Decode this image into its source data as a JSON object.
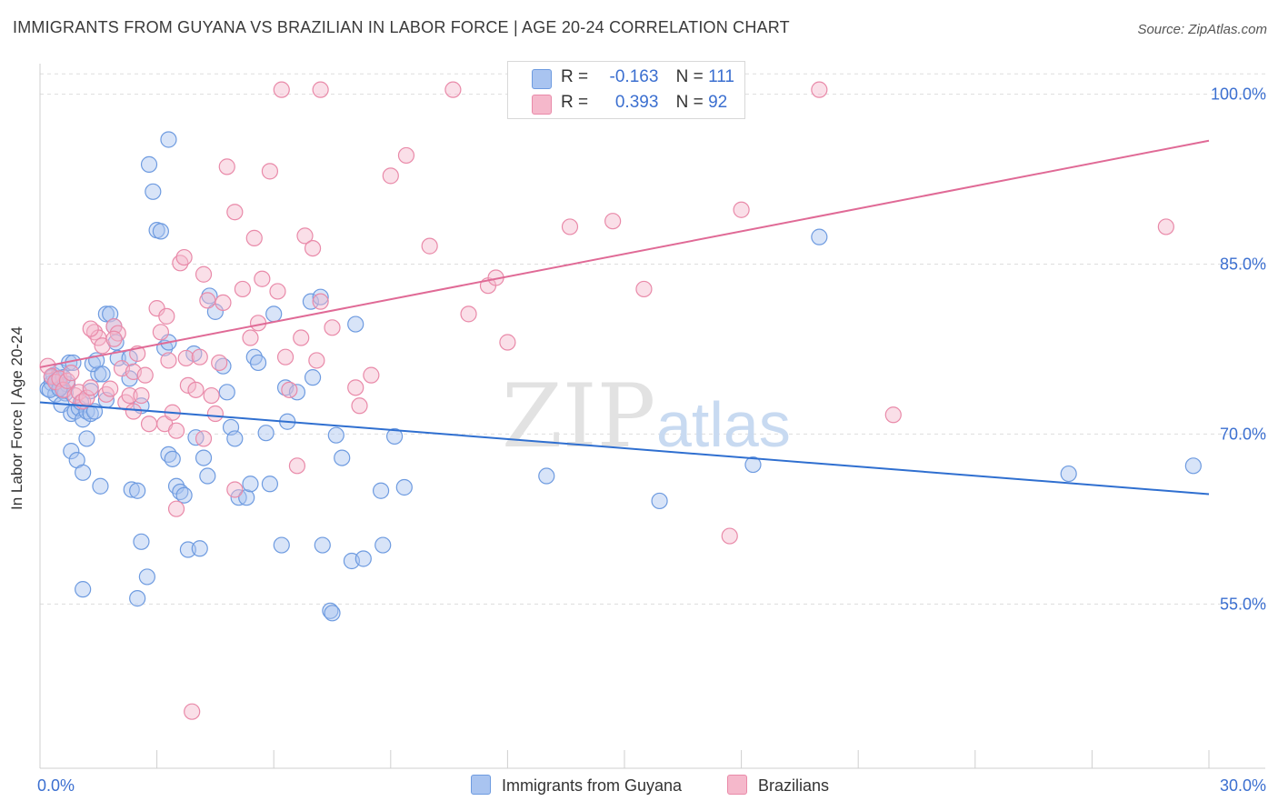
{
  "title": "IMMIGRANTS FROM GUYANA VS BRAZILIAN IN LABOR FORCE | AGE 20-24 CORRELATION CHART",
  "source": "Source: ZipAtlas.com",
  "watermark": {
    "zip": "ZIP",
    "atlas": "atlas"
  },
  "legend": {
    "r_label": "R =",
    "n_label": "N =",
    "series": [
      {
        "r": "-0.163",
        "n": "111"
      },
      {
        "r": "0.393",
        "n": "92"
      }
    ]
  },
  "colors": {
    "blue_fill": "#a9c4f0",
    "blue_stroke": "#6e9be0",
    "blue_line": "#2f6fd0",
    "pink_fill": "#f5b8cb",
    "pink_stroke": "#e98aa9",
    "pink_line": "#e06a96",
    "axis_text": "#3b6fd0",
    "grid": "#dddddd"
  },
  "chart_data": {
    "type": "scatter",
    "title": "IMMIGRANTS FROM GUYANA VS BRAZILIAN IN LABOR FORCE | AGE 20-24 CORRELATION CHART",
    "xlabel": "",
    "ylabel": "In Labor Force | Age 20-24",
    "xlim": [
      0,
      30
    ],
    "ylim": [
      40.5,
      102.7
    ],
    "x_tick_labels": [
      "0.0%",
      "30.0%"
    ],
    "y_ticks": [
      55,
      70,
      85,
      100
    ],
    "y_tick_labels": [
      "55.0%",
      "70.0%",
      "85.0%",
      "100.0%"
    ],
    "grid": true,
    "legend_position": "top-center",
    "series": [
      {
        "name": "Immigrants from Guyana",
        "trend": {
          "x": [
            0,
            30
          ],
          "y": [
            72.8,
            64.7
          ]
        },
        "points": [
          [
            0.2,
            74.0
          ],
          [
            0.3,
            74.5
          ],
          [
            0.35,
            75.2
          ],
          [
            0.4,
            73.5
          ],
          [
            0.45,
            74.8
          ],
          [
            0.5,
            75.5
          ],
          [
            0.55,
            74.2
          ],
          [
            0.6,
            73.8
          ],
          [
            0.25,
            73.9
          ],
          [
            0.3,
            75.0
          ],
          [
            0.7,
            74.4
          ],
          [
            0.65,
            73.6
          ],
          [
            0.4,
            74.6
          ],
          [
            0.5,
            74.0
          ],
          [
            0.6,
            75.0
          ],
          [
            0.55,
            72.6
          ],
          [
            0.75,
            76.3
          ],
          [
            0.8,
            71.8
          ],
          [
            0.9,
            72.0
          ],
          [
            1.0,
            72.3
          ],
          [
            1.1,
            71.3
          ],
          [
            1.05,
            72.8
          ],
          [
            1.2,
            72.0
          ],
          [
            1.3,
            71.8
          ],
          [
            1.4,
            72.0
          ],
          [
            0.85,
            76.3
          ],
          [
            0.8,
            68.5
          ],
          [
            0.95,
            67.7
          ],
          [
            1.1,
            66.6
          ],
          [
            1.2,
            69.6
          ],
          [
            1.5,
            75.3
          ],
          [
            1.35,
            76.2
          ],
          [
            1.45,
            76.5
          ],
          [
            1.6,
            75.3
          ],
          [
            1.55,
            65.4
          ],
          [
            1.7,
            73.0
          ],
          [
            1.7,
            80.6
          ],
          [
            1.8,
            80.6
          ],
          [
            1.9,
            79.5
          ],
          [
            1.95,
            78.1
          ],
          [
            2.0,
            76.7
          ],
          [
            2.3,
            74.9
          ],
          [
            2.35,
            65.1
          ],
          [
            2.3,
            76.7
          ],
          [
            2.5,
            65.0
          ],
          [
            2.6,
            60.5
          ],
          [
            2.75,
            57.4
          ],
          [
            2.8,
            93.8
          ],
          [
            2.9,
            91.4
          ],
          [
            3.0,
            88.0
          ],
          [
            3.1,
            87.9
          ],
          [
            3.2,
            77.6
          ],
          [
            3.3,
            68.2
          ],
          [
            3.4,
            67.8
          ],
          [
            3.5,
            65.4
          ],
          [
            3.6,
            64.9
          ],
          [
            3.7,
            64.6
          ],
          [
            3.8,
            59.8
          ],
          [
            3.95,
            77.1
          ],
          [
            4.0,
            69.7
          ],
          [
            4.1,
            59.9
          ],
          [
            4.2,
            67.9
          ],
          [
            4.3,
            66.3
          ],
          [
            4.35,
            82.2
          ],
          [
            4.5,
            80.8
          ],
          [
            4.7,
            76.0
          ],
          [
            4.8,
            73.7
          ],
          [
            4.9,
            70.6
          ],
          [
            5.0,
            69.6
          ],
          [
            5.1,
            64.4
          ],
          [
            5.3,
            64.4
          ],
          [
            5.4,
            65.6
          ],
          [
            5.5,
            76.8
          ],
          [
            5.6,
            76.3
          ],
          [
            5.8,
            70.1
          ],
          [
            5.9,
            65.6
          ],
          [
            6.0,
            80.6
          ],
          [
            6.2,
            60.2
          ],
          [
            6.3,
            74.1
          ],
          [
            6.35,
            71.1
          ],
          [
            6.6,
            73.7
          ],
          [
            6.95,
            81.7
          ],
          [
            7.0,
            75.0
          ],
          [
            7.25,
            60.2
          ],
          [
            7.2,
            82.1
          ],
          [
            7.45,
            54.4
          ],
          [
            7.5,
            54.2
          ],
          [
            7.6,
            69.9
          ],
          [
            7.75,
            67.9
          ],
          [
            8.0,
            58.8
          ],
          [
            8.1,
            79.7
          ],
          [
            8.3,
            59.0
          ],
          [
            8.75,
            65.0
          ],
          [
            8.8,
            60.2
          ],
          [
            9.1,
            69.8
          ],
          [
            9.35,
            65.3
          ],
          [
            13.0,
            66.3
          ],
          [
            15.9,
            64.1
          ],
          [
            18.3,
            67.3
          ],
          [
            20.0,
            87.4
          ],
          [
            26.4,
            66.5
          ],
          [
            29.6,
            67.2
          ],
          [
            1.1,
            56.3
          ],
          [
            2.5,
            55.5
          ],
          [
            2.6,
            72.5
          ],
          [
            3.3,
            96.0
          ],
          [
            3.3,
            78.1
          ],
          [
            1.3,
            73.8
          ]
        ]
      },
      {
        "name": "Brazilians",
        "trend": {
          "x": [
            0,
            30
          ],
          "y": [
            75.9,
            95.9
          ]
        },
        "points": [
          [
            0.2,
            76.0
          ],
          [
            0.3,
            75.1
          ],
          [
            0.4,
            74.6
          ],
          [
            0.5,
            74.9
          ],
          [
            0.6,
            73.9
          ],
          [
            0.7,
            74.7
          ],
          [
            0.8,
            75.4
          ],
          [
            0.9,
            73.4
          ],
          [
            1.0,
            73.7
          ],
          [
            1.1,
            72.9
          ],
          [
            1.2,
            73.2
          ],
          [
            1.3,
            74.1
          ],
          [
            1.4,
            79.0
          ],
          [
            1.5,
            78.5
          ],
          [
            1.6,
            77.8
          ],
          [
            1.7,
            73.5
          ],
          [
            1.8,
            74.0
          ],
          [
            1.9,
            79.5
          ],
          [
            2.0,
            78.9
          ],
          [
            2.1,
            75.8
          ],
          [
            2.2,
            72.8
          ],
          [
            2.3,
            73.4
          ],
          [
            2.4,
            75.5
          ],
          [
            2.5,
            77.1
          ],
          [
            2.6,
            73.4
          ],
          [
            2.7,
            75.2
          ],
          [
            2.8,
            70.9
          ],
          [
            3.0,
            81.1
          ],
          [
            3.1,
            79.0
          ],
          [
            3.2,
            70.9
          ],
          [
            3.25,
            80.4
          ],
          [
            3.3,
            76.5
          ],
          [
            3.4,
            71.9
          ],
          [
            3.5,
            70.3
          ],
          [
            3.6,
            85.1
          ],
          [
            3.7,
            85.6
          ],
          [
            3.75,
            76.7
          ],
          [
            3.8,
            74.3
          ],
          [
            4.0,
            73.9
          ],
          [
            4.1,
            76.8
          ],
          [
            4.2,
            84.1
          ],
          [
            4.3,
            81.8
          ],
          [
            4.4,
            73.4
          ],
          [
            4.5,
            71.8
          ],
          [
            4.6,
            76.3
          ],
          [
            4.7,
            81.6
          ],
          [
            4.8,
            93.6
          ],
          [
            5.0,
            89.6
          ],
          [
            5.2,
            82.8
          ],
          [
            5.4,
            78.5
          ],
          [
            5.5,
            87.3
          ],
          [
            5.6,
            79.8
          ],
          [
            5.7,
            83.7
          ],
          [
            5.9,
            93.2
          ],
          [
            6.1,
            82.6
          ],
          [
            6.3,
            76.8
          ],
          [
            6.4,
            73.9
          ],
          [
            6.6,
            67.2
          ],
          [
            6.7,
            78.5
          ],
          [
            6.8,
            87.5
          ],
          [
            7.0,
            86.4
          ],
          [
            7.1,
            76.5
          ],
          [
            7.2,
            81.7
          ],
          [
            7.5,
            79.4
          ],
          [
            8.1,
            74.1
          ],
          [
            8.2,
            72.5
          ],
          [
            8.5,
            75.2
          ],
          [
            9.0,
            92.8
          ],
          [
            9.4,
            94.6
          ],
          [
            10.0,
            86.6
          ],
          [
            11.0,
            80.6
          ],
          [
            11.5,
            83.1
          ],
          [
            11.7,
            83.8
          ],
          [
            12.0,
            78.1
          ],
          [
            13.6,
            88.3
          ],
          [
            14.7,
            88.8
          ],
          [
            15.5,
            82.8
          ],
          [
            17.7,
            61.0
          ],
          [
            18.0,
            89.8
          ],
          [
            21.9,
            71.7
          ],
          [
            28.9,
            88.3
          ],
          [
            6.2,
            100.4
          ],
          [
            7.2,
            100.4
          ],
          [
            10.6,
            100.4
          ],
          [
            20.0,
            100.4
          ],
          [
            4.2,
            69.6
          ],
          [
            5.0,
            65.1
          ],
          [
            2.4,
            72.0
          ],
          [
            3.5,
            63.4
          ],
          [
            3.9,
            45.5
          ],
          [
            1.3,
            79.3
          ],
          [
            1.9,
            78.4
          ]
        ]
      }
    ]
  }
}
